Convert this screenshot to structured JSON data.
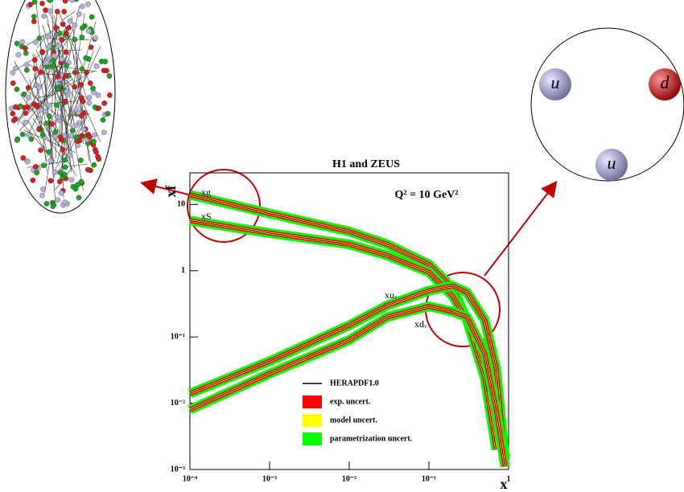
{
  "chart_data": {
    "type": "line",
    "title": "H1 and ZEUS",
    "y_label": "xf",
    "x_label": "x",
    "annotation": "Q² = 10 GeV²",
    "log_x": true,
    "log_y": true,
    "x": [
      0.0001,
      0.001,
      0.01,
      0.03,
      0.1,
      0.2,
      0.3,
      0.5,
      0.7,
      0.9
    ],
    "series": [
      {
        "name": "xg",
        "color": "#000000",
        "values": [
          14,
          7.3,
          3.9,
          2.5,
          1.25,
          0.54,
          0.18,
          0.025,
          0.002,
          null
        ]
      },
      {
        "name": "xS",
        "color": "#000000",
        "values": [
          5.7,
          3.7,
          2.5,
          1.7,
          0.95,
          0.41,
          0.18,
          0.025,
          0.002,
          null
        ]
      },
      {
        "name": "xuᵥ",
        "color": "#000000",
        "values": [
          0.014,
          0.043,
          0.15,
          0.3,
          0.5,
          0.59,
          0.47,
          0.18,
          0.033,
          0.0015
        ]
      },
      {
        "name": "xdᵥ",
        "color": "#000000",
        "values": [
          0.008,
          0.028,
          0.09,
          0.2,
          0.29,
          0.24,
          0.2,
          0.057,
          0.008,
          0.0011
        ]
      }
    ],
    "legend": [
      {
        "label": "HERAPDF1.0",
        "color": "#000000"
      },
      {
        "label": "exp. uncert.",
        "color": "#ff0000"
      },
      {
        "label": "model uncert.",
        "color": "#ffff00"
      },
      {
        "label": "parametrization uncert.",
        "color": "#00ff00"
      }
    ],
    "xlim": [
      0.0001,
      1
    ],
    "ylim": [
      0.001,
      30
    ],
    "xticks": [
      {
        "value": 0.0001,
        "label": "10⁻⁴"
      },
      {
        "value": 0.001,
        "label": "10⁻³"
      },
      {
        "value": 0.01,
        "label": "10⁻²"
      },
      {
        "value": 0.1,
        "label": "10⁻¹"
      },
      1
    ],
    "yticks": [
      {
        "value": 0.001,
        "label": "10⁻³"
      },
      {
        "value": 0.01,
        "label": "10⁻²"
      },
      {
        "value": 0.1,
        "label": "10⁻¹"
      },
      1,
      10
    ]
  },
  "proton_diagram": {
    "quarks": [
      "u",
      "d",
      "u"
    ]
  }
}
